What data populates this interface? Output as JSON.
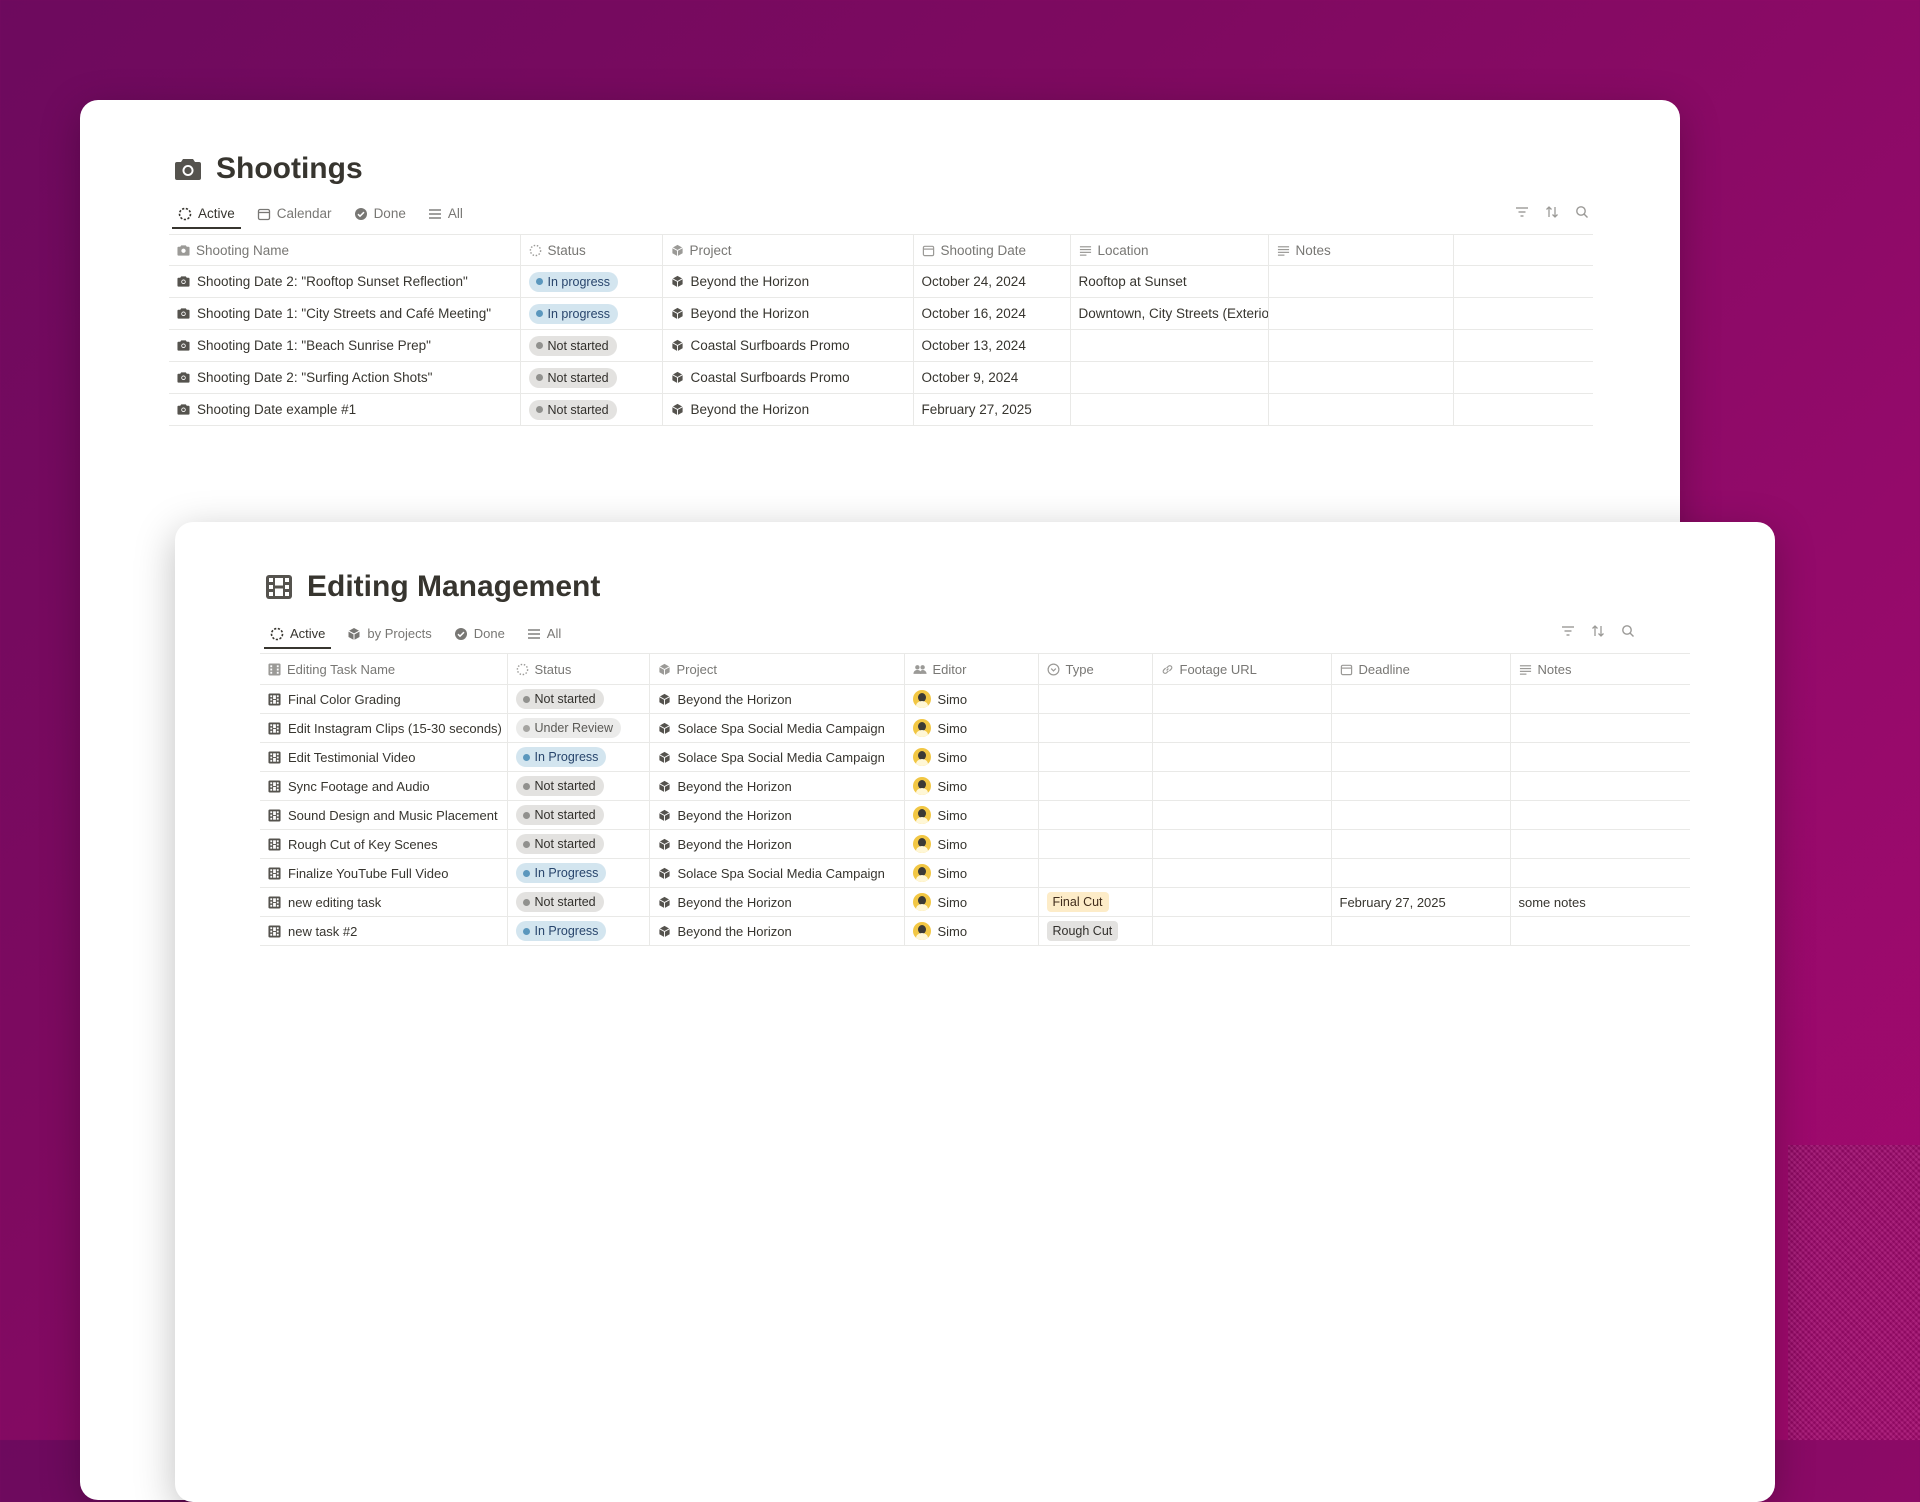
{
  "shootings": {
    "title": "Shootings",
    "tabs": [
      "Active",
      "Calendar",
      "Done",
      "All"
    ],
    "columns": [
      "Shooting Name",
      "Status",
      "Project",
      "Shooting Date",
      "Location",
      "Notes"
    ],
    "rows": [
      {
        "name": "Shooting Date 2: \"Rooftop Sunset Reflection\"",
        "status": "In progress",
        "project": "Beyond the Horizon",
        "date": "October 24, 2024",
        "location": "Rooftop at Sunset",
        "notes": ""
      },
      {
        "name": "Shooting Date 1: \"City Streets and Café Meeting\"",
        "status": "In progress",
        "project": "Beyond the Horizon",
        "date": "October 16, 2024",
        "location": "Downtown, City Streets (Exterio",
        "notes": ""
      },
      {
        "name": "Shooting Date 1: \"Beach Sunrise Prep\"",
        "status": "Not started",
        "project": "Coastal Surfboards Promo",
        "date": "October 13, 2024",
        "location": "",
        "notes": ""
      },
      {
        "name": "Shooting Date 2: \"Surfing Action Shots\"",
        "status": "Not started",
        "project": "Coastal Surfboards Promo",
        "date": "October 9, 2024",
        "location": "",
        "notes": ""
      },
      {
        "name": "Shooting Date example #1",
        "status": "Not started",
        "project": "Beyond the Horizon",
        "date": "February 27, 2025",
        "location": "",
        "notes": ""
      }
    ]
  },
  "editing": {
    "title": "Editing Management",
    "tabs": [
      "Active",
      "by Projects",
      "Done",
      "All"
    ],
    "columns": [
      "Editing Task Name",
      "Status",
      "Project",
      "Editor",
      "Type",
      "Footage URL",
      "Deadline",
      "Notes"
    ],
    "rows": [
      {
        "name": "Final Color Grading",
        "status": "Not started",
        "project": "Beyond the Horizon",
        "editor": "Simo",
        "type": "",
        "url": "",
        "deadline": "",
        "notes": ""
      },
      {
        "name": "Edit Instagram Clips (15-30 seconds)",
        "status": "Under Review",
        "project": "Solace Spa Social Media Campaign",
        "editor": "Simo",
        "type": "",
        "url": "",
        "deadline": "",
        "notes": ""
      },
      {
        "name": "Edit Testimonial Video",
        "status": "In Progress",
        "project": "Solace Spa Social Media Campaign",
        "editor": "Simo",
        "type": "",
        "url": "",
        "deadline": "",
        "notes": ""
      },
      {
        "name": "Sync Footage and Audio",
        "status": "Not started",
        "project": "Beyond the Horizon",
        "editor": "Simo",
        "type": "",
        "url": "",
        "deadline": "",
        "notes": ""
      },
      {
        "name": "Sound Design and Music Placement",
        "status": "Not started",
        "project": "Beyond the Horizon",
        "editor": "Simo",
        "type": "",
        "url": "",
        "deadline": "",
        "notes": ""
      },
      {
        "name": "Rough Cut of Key Scenes",
        "status": "Not started",
        "project": "Beyond the Horizon",
        "editor": "Simo",
        "type": "",
        "url": "",
        "deadline": "",
        "notes": ""
      },
      {
        "name": "Finalize YouTube Full Video",
        "status": "In Progress",
        "project": "Solace Spa Social Media Campaign",
        "editor": "Simo",
        "type": "",
        "url": "",
        "deadline": "",
        "notes": ""
      },
      {
        "name": "new editing task",
        "status": "Not started",
        "project": "Beyond the Horizon",
        "editor": "Simo",
        "type": "Final Cut",
        "url": "",
        "deadline": "February 27, 2025",
        "notes": "some notes"
      },
      {
        "name": "new task #2",
        "status": "In Progress",
        "project": "Beyond the Horizon",
        "editor": "Simo",
        "type": "Rough Cut",
        "url": "",
        "deadline": "",
        "notes": ""
      }
    ]
  },
  "colors": {
    "background_start": "#6d0a5e",
    "background_end": "#a3096e",
    "pill_gray": "#e3e2e0",
    "pill_blue": "#d3e5ef",
    "tag_yellow": "#fdecc8"
  },
  "icons": {
    "shootings_title": "camera-icon",
    "editing_title": "film-icon",
    "project": "cube-icon",
    "filter": "filter-icon",
    "sort": "sort-icon",
    "search": "search-icon"
  }
}
